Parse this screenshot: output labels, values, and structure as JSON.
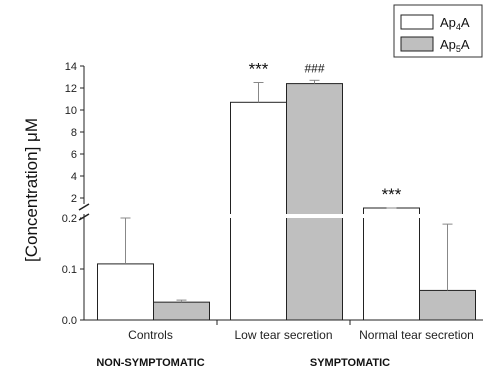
{
  "chart_data": {
    "type": "bar",
    "ylabel": "[Concentration] μM",
    "categories": [
      "Controls",
      "Low tear secretion",
      "Normal tear secretion"
    ],
    "groups": [
      {
        "label": "NON-SYMPTOMATIC",
        "categories": [
          0
        ]
      },
      {
        "label": "SYMPTOMATIC",
        "categories": [
          1,
          2
        ]
      }
    ],
    "axis_break": {
      "lower_max": 0.2,
      "upper_min": 2
    },
    "y_ticks_lower": [
      0.0,
      0.1,
      0.2
    ],
    "y_tick_labels_lower": [
      "0.0",
      "0.1",
      "0.2"
    ],
    "y_ticks_upper": [
      2,
      4,
      6,
      8,
      10,
      12,
      14
    ],
    "ylim_upper": [
      2,
      14
    ],
    "series": [
      {
        "name": "Ap4A",
        "color": "#ffffff",
        "values": [
          0.11,
          10.7,
          0.21
        ],
        "errors": [
          0.09,
          1.8,
          0.005
        ]
      },
      {
        "name": "Ap5A",
        "color": "#bfbfbf",
        "values": [
          0.035,
          12.4,
          0.058
        ],
        "errors": [
          0.004,
          0.3,
          0.13
        ]
      }
    ],
    "annotations": [
      {
        "category": 1,
        "series": 0,
        "text": "***"
      },
      {
        "category": 1,
        "series": 1,
        "text": "###"
      },
      {
        "category": 2,
        "series": 0,
        "text": "***"
      }
    ],
    "legend_position": "top-right",
    "grid": false
  },
  "legend": {
    "items": [
      {
        "base": "Ap",
        "sub": "4",
        "tail": "A"
      },
      {
        "base": "Ap",
        "sub": "5",
        "tail": "A"
      }
    ]
  }
}
